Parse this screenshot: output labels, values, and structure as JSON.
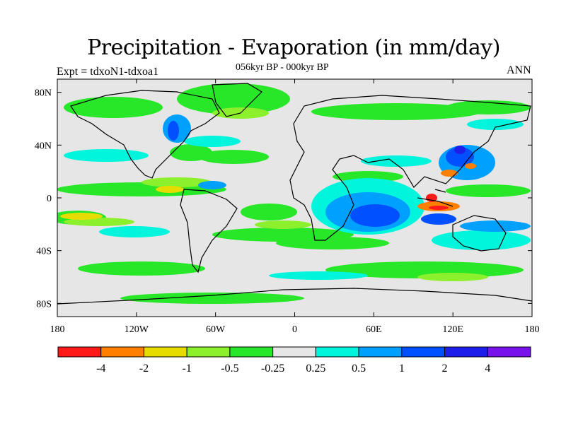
{
  "title": "Precipitation - Evaporation (in mm/day)",
  "subtitle": "056kyr BP - 000kyr BP",
  "expt_label": "Expt = tdxoN1-tdxoa1",
  "season": "ANN",
  "map": {
    "projection": "cylindrical-equidistant",
    "lon_range": [
      -180,
      180
    ],
    "lat_range": [
      -90,
      90
    ],
    "y_ticks": [
      {
        "label": "80N",
        "lat": 80
      },
      {
        "label": "40N",
        "lat": 40
      },
      {
        "label": "0",
        "lat": 0
      },
      {
        "label": "40S",
        "lat": -40
      },
      {
        "label": "80S",
        "lat": -80
      }
    ],
    "x_ticks": [
      {
        "label": "180",
        "lon": -180
      },
      {
        "label": "120W",
        "lon": -120
      },
      {
        "label": "60W",
        "lon": -60
      },
      {
        "label": "0",
        "lon": 0
      },
      {
        "label": "60E",
        "lon": 60
      },
      {
        "label": "120E",
        "lon": 120
      },
      {
        "label": "180",
        "lon": 180
      }
    ]
  },
  "colorbar": {
    "colors": [
      "#ff1a1a",
      "#ff8000",
      "#e6dc00",
      "#8cf02d",
      "#28e628",
      "#e6e6e6",
      "#00f5dc",
      "#00a0ff",
      "#0050ff",
      "#1e1eeb",
      "#7814eb"
    ],
    "labels": [
      "-4",
      "-2",
      "-1",
      "-0.5",
      "-0.25",
      "0.25",
      "0.5",
      "1",
      "2",
      "4"
    ]
  },
  "colors": {
    "background": "#e6e6e6",
    "coastline": "#000000"
  }
}
